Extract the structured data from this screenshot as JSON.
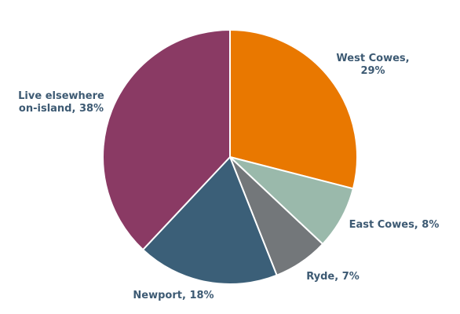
{
  "chart_data": {
    "type": "pie",
    "title": "",
    "start_angle_deg": 0,
    "direction": "clockwise",
    "slice_border_color": "#ffffff",
    "label_color": "#3d5a73",
    "slices": [
      {
        "key": "west-cowes",
        "label_lines": [
          "West Cowes,",
          "29%"
        ],
        "value": 29,
        "color": "#e97800"
      },
      {
        "key": "east-cowes",
        "label_lines": [
          "East Cowes, 8%"
        ],
        "value": 8,
        "color": "#9ab9ab"
      },
      {
        "key": "ryde",
        "label_lines": [
          "Ryde, 7%"
        ],
        "value": 7,
        "color": "#73777a"
      },
      {
        "key": "newport",
        "label_lines": [
          "Newport, 18%"
        ],
        "value": 18,
        "color": "#3b5f78"
      },
      {
        "key": "live-elsewhere-on-island",
        "label_lines": [
          "Live elsewhere",
          "on-island, 38%"
        ],
        "value": 38,
        "color": "#8a3a64"
      }
    ]
  }
}
